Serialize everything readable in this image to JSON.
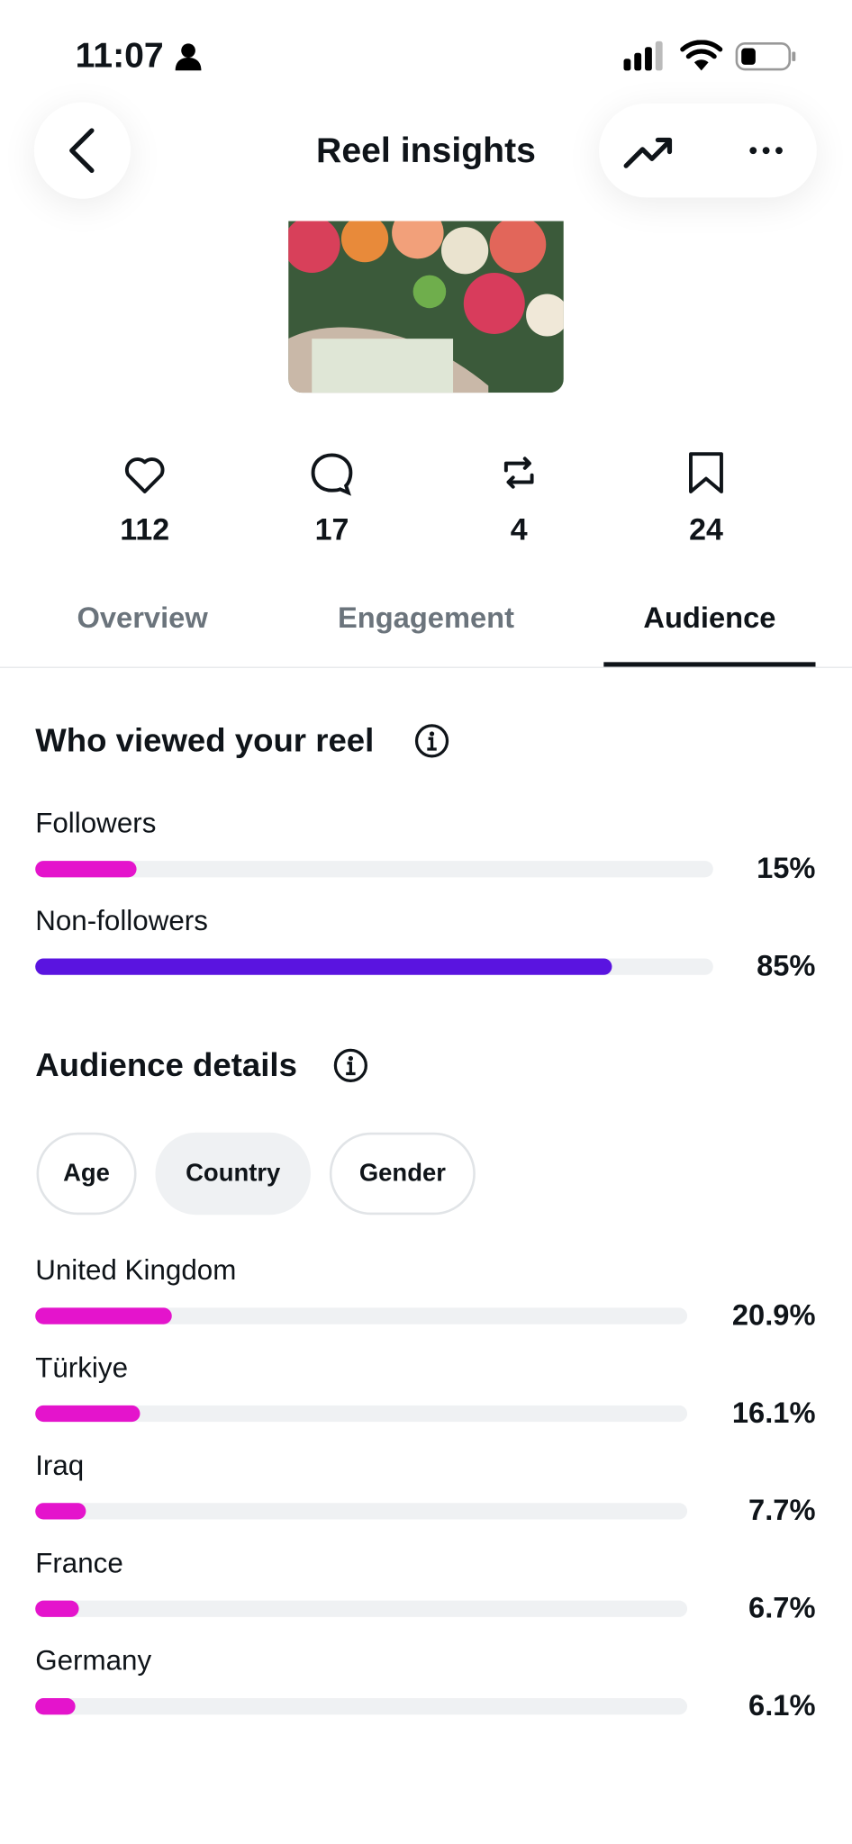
{
  "status": {
    "time": "11:07"
  },
  "header": {
    "title": "Reel insights"
  },
  "stats": [
    {
      "name": "likes",
      "value": 112
    },
    {
      "name": "comments",
      "value": 17
    },
    {
      "name": "reposts",
      "value": 4
    },
    {
      "name": "saves",
      "value": 24
    }
  ],
  "tabs": {
    "items": [
      "Overview",
      "Engagement",
      "Audience"
    ],
    "active": 2
  },
  "viewers": {
    "title": "Who viewed your reel",
    "rows": [
      {
        "label": "Followers",
        "value": 15,
        "value_label": "15%",
        "color": "#e414cc"
      },
      {
        "label": "Non-followers",
        "value": 85,
        "value_label": "85%",
        "color": "#5a14e0"
      }
    ]
  },
  "audience": {
    "title": "Audience details",
    "chips": [
      "Age",
      "Country",
      "Gender"
    ],
    "active_chip": 1,
    "color": "#e414cc",
    "rows": [
      {
        "label": "United Kingdom",
        "value": 20.9,
        "value_label": "20.9%"
      },
      {
        "label": "Türkiye",
        "value": 16.1,
        "value_label": "16.1%"
      },
      {
        "label": "Iraq",
        "value": 7.7,
        "value_label": "7.7%"
      },
      {
        "label": "France",
        "value": 6.7,
        "value_label": "6.7%"
      },
      {
        "label": "Germany",
        "value": 6.1,
        "value_label": "6.1%"
      }
    ]
  }
}
